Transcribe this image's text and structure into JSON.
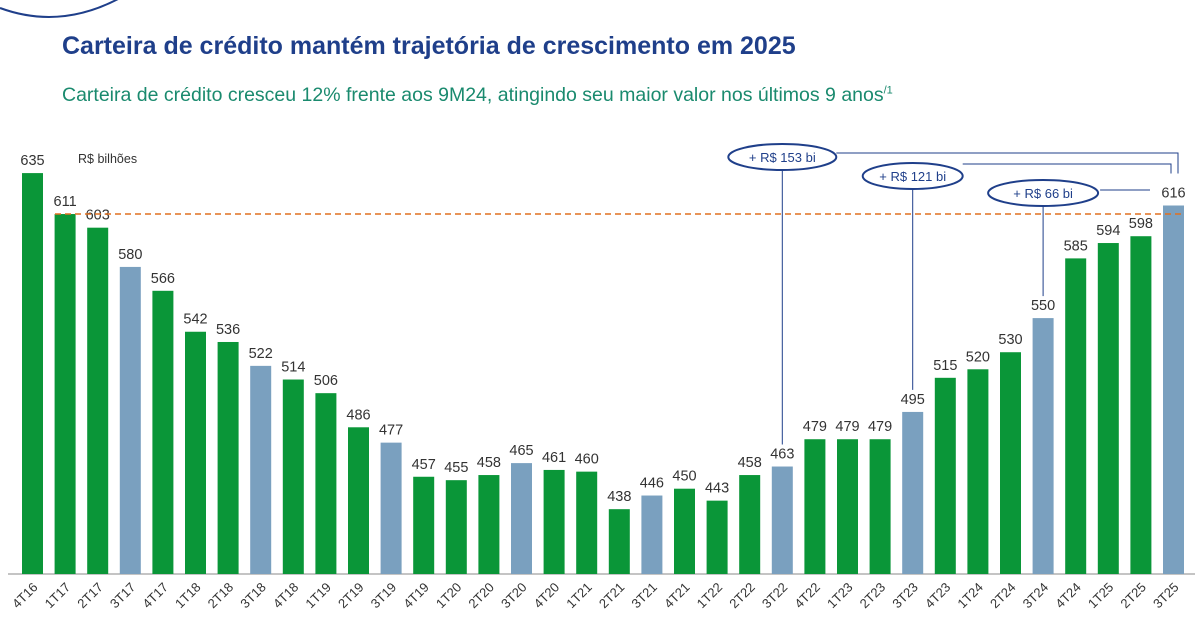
{
  "title": "Carteira de crédito mantém trajetória de crescimento em 2025",
  "subtitle": "Carteira de crédito cresceu 12% frente aos 9M24, atingindo seu maior valor nos últimos 9 anos",
  "subtitle_footnote": "/1",
  "colors": {
    "regular": "#0a9638",
    "third_quarter": "#7aa0bf",
    "reference_line": "#e07020",
    "annotation": "#1f3f8a"
  },
  "chart_data": {
    "type": "bar",
    "unit_label": "R$ bilhões",
    "categories": [
      "4T16",
      "1T17",
      "2T17",
      "3T17",
      "4T17",
      "1T18",
      "2T18",
      "3T18",
      "4T18",
      "1T19",
      "2T19",
      "3T19",
      "4T19",
      "1T20",
      "2T20",
      "3T20",
      "4T20",
      "1T21",
      "2T21",
      "3T21",
      "4T21",
      "1T22",
      "2T22",
      "3T22",
      "4T22",
      "1T23",
      "2T23",
      "3T23",
      "4T23",
      "1T24",
      "2T24",
      "3T24",
      "4T24",
      "1T25",
      "2T25",
      "3T25"
    ],
    "values": [
      635,
      611,
      603,
      580,
      566,
      542,
      536,
      522,
      514,
      506,
      486,
      477,
      457,
      455,
      458,
      465,
      461,
      460,
      438,
      446,
      450,
      443,
      458,
      463,
      479,
      479,
      479,
      495,
      515,
      520,
      530,
      550,
      585,
      594,
      598,
      616
    ],
    "highlight_quarter_prefix": "3T",
    "ylim": [
      400,
      650
    ],
    "grid": false,
    "reference_line": {
      "value": 611,
      "style": "dashed"
    },
    "annotations": [
      {
        "label": "+ R$ 153 bi",
        "from": "3T22",
        "to": "3T25"
      },
      {
        "label": "+ R$ 121 bi",
        "from": "3T23",
        "to": "3T25"
      },
      {
        "label": "+ R$ 66 bi",
        "from": "3T24",
        "to": "3T25"
      }
    ]
  }
}
